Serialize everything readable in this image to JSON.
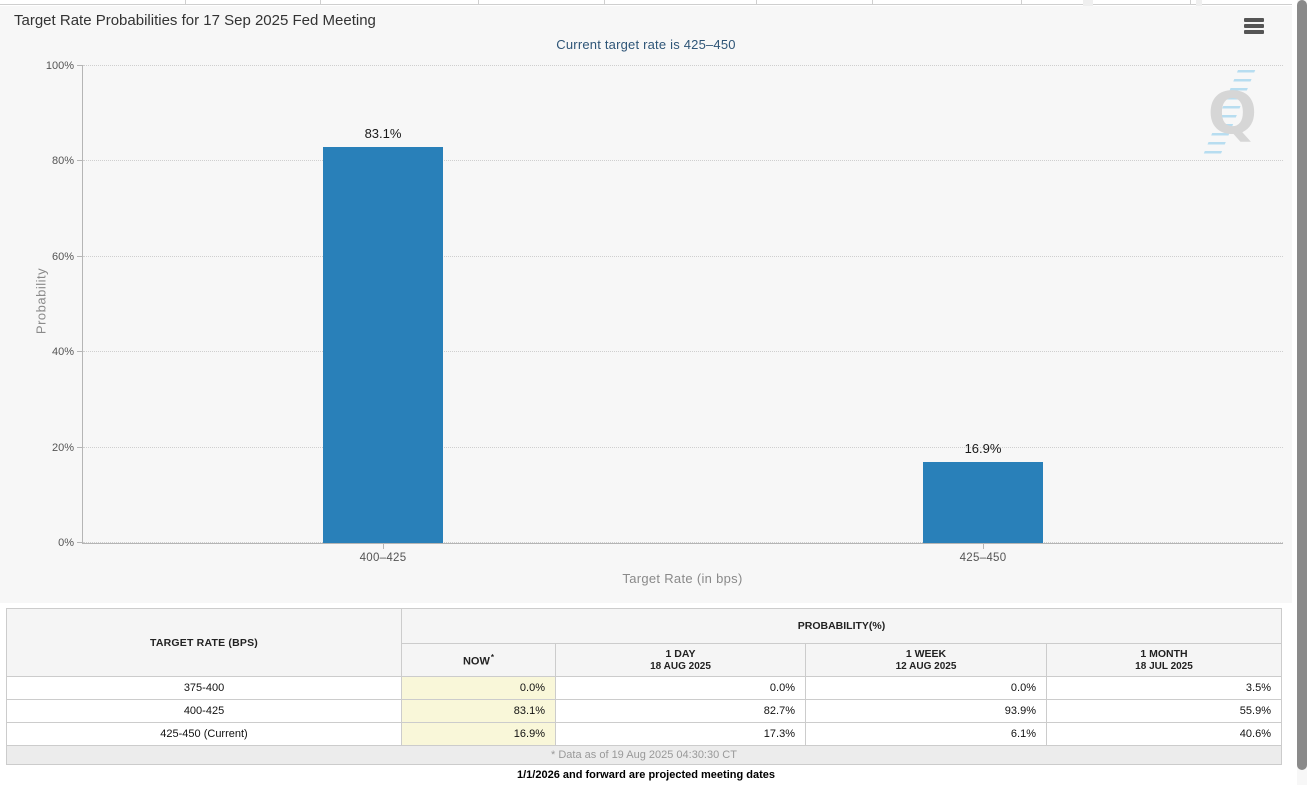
{
  "header": {
    "title": "Target Rate Probabilities for 17 Sep 2025 Fed Meeting"
  },
  "chart_data": {
    "type": "bar",
    "title": "Target Rate Probabilities for 17 Sep 2025 Fed Meeting",
    "subtitle": "Current target rate is 425–450",
    "categories": [
      "400–425",
      "425–450"
    ],
    "values": [
      83.1,
      16.9
    ],
    "value_labels": [
      "83.1%",
      "16.9%"
    ],
    "xlabel": "Target Rate (in bps)",
    "ylabel": "Probability",
    "ylim": [
      0,
      100
    ],
    "yticks": [
      "0%",
      "20%",
      "40%",
      "60%",
      "80%",
      "100%"
    ],
    "grid": "horizontal-dotted",
    "legend_position": "none",
    "bar_color": "#2980b9"
  },
  "watermark_letter": "Q",
  "table": {
    "col1_header": "TARGET RATE (BPS)",
    "group_header": "PROBABILITY(%)",
    "columns": [
      {
        "label": "NOW",
        "sup": "*",
        "sub": ""
      },
      {
        "label": "1 DAY",
        "sub": "18 AUG 2025"
      },
      {
        "label": "1 WEEK",
        "sub": "12 AUG 2025"
      },
      {
        "label": "1 MONTH",
        "sub": "18 JUL 2025"
      }
    ],
    "rows": [
      {
        "rate": "375-400",
        "now": "0.0%",
        "day": "0.0%",
        "week": "0.0%",
        "month": "3.5%"
      },
      {
        "rate": "400-425",
        "now": "83.1%",
        "day": "82.7%",
        "week": "93.9%",
        "month": "55.9%"
      },
      {
        "rate": "425-450 (Current)",
        "now": "16.9%",
        "day": "17.3%",
        "week": "6.1%",
        "month": "40.6%"
      }
    ],
    "footnote": "* Data as of 19 Aug 2025 04:30:30 CT"
  },
  "bottom_note": "1/1/2026 and forward are projected meeting dates",
  "colors": {
    "bar": "#2980b9",
    "subtitle_text": "#2e5577",
    "now_column_bg": "#f9f7d9",
    "panel_bg": "#f7f7f7",
    "scrollbar_thumb": "#8a8a8a"
  }
}
